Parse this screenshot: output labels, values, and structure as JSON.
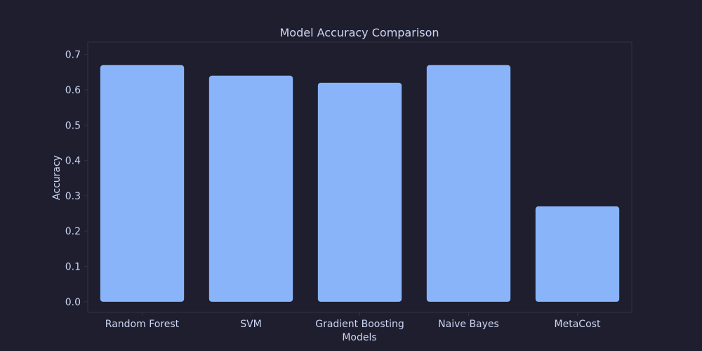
{
  "colors": {
    "background": "#1e1e2e",
    "bar": "#89b4fa",
    "text": "#cdd6f4",
    "frame": "#313244"
  },
  "chart_data": {
    "type": "bar",
    "title": "Model Accuracy Comparison",
    "xlabel": "Models",
    "ylabel": "Accuracy",
    "categories": [
      "Random Forest",
      "SVM",
      "Gradient Boosting",
      "Naive Bayes",
      "MetaCost"
    ],
    "values": [
      0.67,
      0.64,
      0.62,
      0.67,
      0.27
    ],
    "ylim": [
      -0.03,
      0.735
    ],
    "yticks": [
      "0.0",
      "0.1",
      "0.2",
      "0.3",
      "0.4",
      "0.5",
      "0.6",
      "0.7"
    ],
    "grid": false,
    "legend": "none"
  }
}
